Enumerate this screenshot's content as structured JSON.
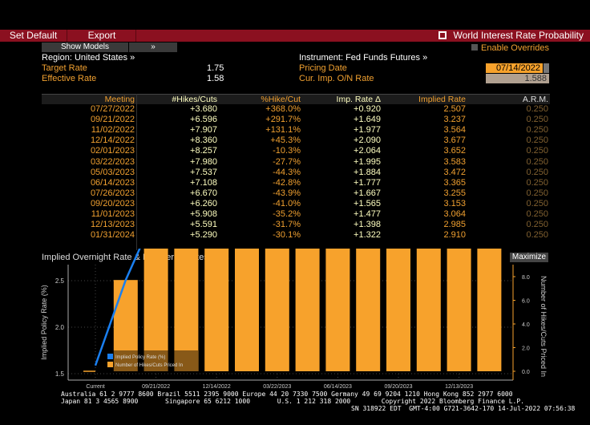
{
  "toolbar": {
    "set_default": "Set Default",
    "export": "Export",
    "title": "World Interest Rate Probability",
    "icon": "external-link-icon"
  },
  "controls": {
    "show_models": "Show Models",
    "expand": "»",
    "enable_overrides": "Enable Overrides"
  },
  "info": {
    "region": "Region: United States »",
    "target_rate_label": "Target Rate",
    "target_rate": "1.75",
    "effective_rate_label": "Effective Rate",
    "effective_rate": "1.58",
    "instrument": "Instrument: Fed Funds Futures »",
    "pricing_date_label": "Pricing Date",
    "pricing_date": "07/14/2022",
    "cur_imp_label": "Cur. Imp. O/N Rate",
    "cur_imp": "1.588"
  },
  "table": {
    "headers": [
      "Meeting",
      "#Hikes/Cuts",
      "%Hike/Cut",
      "Imp. Rate Δ",
      "Implied Rate",
      "A.R.M."
    ],
    "rows": [
      [
        "07/27/2022",
        "+3.680",
        "+368.0%",
        "+0.920",
        "2.507",
        "0.250"
      ],
      [
        "09/21/2022",
        "+6.596",
        "+291.7%",
        "+1.649",
        "3.237",
        "0.250"
      ],
      [
        "11/02/2022",
        "+7.907",
        "+131.1%",
        "+1.977",
        "3.564",
        "0.250"
      ],
      [
        "12/14/2022",
        "+8.360",
        "+45.3%",
        "+2.090",
        "3.677",
        "0.250"
      ],
      [
        "02/01/2023",
        "+8.257",
        "-10.3%",
        "+2.064",
        "3.652",
        "0.250"
      ],
      [
        "03/22/2023",
        "+7.980",
        "-27.7%",
        "+1.995",
        "3.583",
        "0.250"
      ],
      [
        "05/03/2023",
        "+7.537",
        "-44.3%",
        "+1.884",
        "3.472",
        "0.250"
      ],
      [
        "06/14/2023",
        "+7.108",
        "-42.8%",
        "+1.777",
        "3.365",
        "0.250"
      ],
      [
        "07/26/2023",
        "+6.670",
        "-43.9%",
        "+1.667",
        "3.255",
        "0.250"
      ],
      [
        "09/20/2023",
        "+6.260",
        "-41.0%",
        "+1.565",
        "3.153",
        "0.250"
      ],
      [
        "11/01/2023",
        "+5.908",
        "-35.2%",
        "+1.477",
        "3.064",
        "0.250"
      ],
      [
        "12/13/2023",
        "+5.591",
        "-31.7%",
        "+1.398",
        "2.985",
        "0.250"
      ],
      [
        "01/31/2024",
        "+5.290",
        "-30.1%",
        "+1.322",
        "2.910",
        "0.250"
      ]
    ]
  },
  "chart_data": {
    "type": "bar",
    "title": "Implied Overnight Rate & Number of Hikes/Cuts",
    "maximize": "Maximize",
    "categories": [
      "Current",
      "07/27/2022",
      "09/21/2022",
      "11/02/2022",
      "12/14/2022",
      "02/01/2023",
      "03/22/2023",
      "05/03/2023",
      "06/14/2023",
      "07/26/2023",
      "09/20/2023",
      "11/01/2023",
      "12/13/2023",
      "01/31/2024"
    ],
    "xtick_labels": [
      "Current",
      "09/21/2022",
      "12/14/2022",
      "03/22/2023",
      "06/14/2023",
      "09/20/2023",
      "12/13/2023"
    ],
    "ylabel": "Implied Policy Rate (%)",
    "y2label": "Number of Hikes/Cuts Priced In",
    "ylim": [
      1.45,
      3.85
    ],
    "yticks": [
      1.5,
      2.0,
      2.5,
      3.0,
      3.5
    ],
    "y2ticks": [
      "0.0",
      "2.0",
      "4.0",
      "6.0",
      "8.0"
    ],
    "series": [
      {
        "name": "Implied Policy Rate (%)",
        "type": "line",
        "color": "#1a7ff0",
        "values": [
          1.588,
          2.507,
          3.237,
          3.564,
          3.677,
          3.652,
          3.583,
          3.472,
          3.365,
          3.255,
          3.153,
          3.064,
          2.985,
          2.91
        ]
      },
      {
        "name": "Number of Hikes/Cuts Priced In",
        "type": "bar",
        "color": "#f7a22c",
        "values": [
          0,
          3.68,
          6.596,
          7.907,
          8.36,
          8.257,
          7.98,
          7.537,
          7.108,
          6.67,
          6.26,
          5.908,
          5.591,
          5.29
        ]
      }
    ],
    "legend": "bottom-left"
  },
  "footer": {
    "line1": "Australia 61 2 9777 8600 Brazil 5511 2395 9000 Europe 44 20 7330 7500 Germany 49 69 9204 1210 Hong Kong 852 2977 6000",
    "line2": "Japan 81 3 4565 8900       Singapore 65 6212 1000       U.S. 1 212 318 2000        Copyright 2022 Bloomberg Finance L.P.",
    "line3": "SN 318922 EDT  GMT-4:00 G721-3642-170 14-Jul-2022 07:56:38"
  }
}
